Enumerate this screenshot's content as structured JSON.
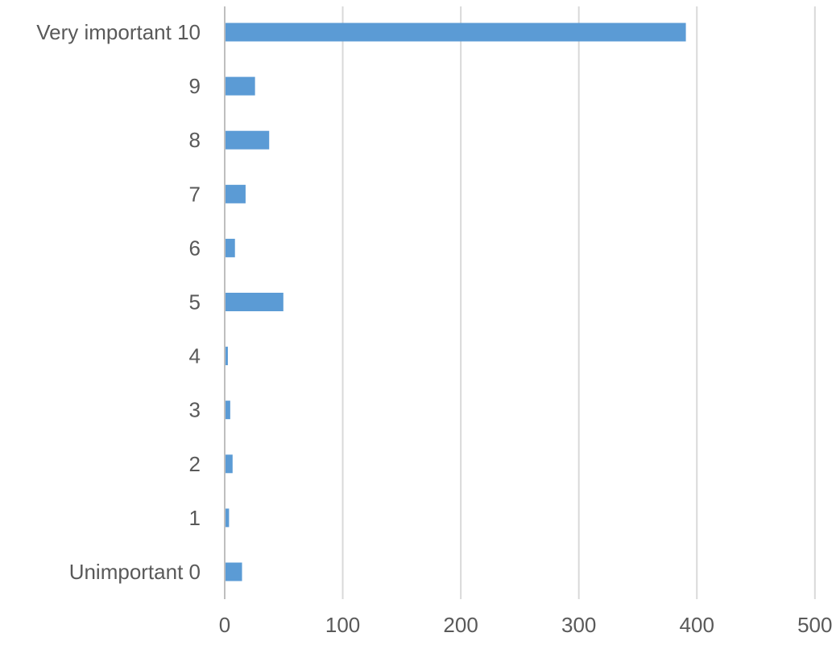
{
  "chart_data": {
    "type": "bar",
    "orientation": "horizontal",
    "categories": [
      "Unimportant 0",
      "1",
      "2",
      "3",
      "4",
      "5",
      "6",
      "7",
      "8",
      "9",
      "Very important 10"
    ],
    "values": [
      14,
      3,
      6,
      4,
      2,
      49,
      8,
      17,
      37,
      25,
      390
    ],
    "xlim": [
      0,
      500
    ],
    "xticks": [
      0,
      100,
      200,
      300,
      400,
      500
    ],
    "grid": "vertical",
    "legend": "none",
    "title": "",
    "xlabel": "",
    "ylabel": ""
  },
  "colors": {
    "bar": "#5B9BD5",
    "grid": "#D9D9D9",
    "axis": "#BFBFBF",
    "text": "#595959"
  }
}
